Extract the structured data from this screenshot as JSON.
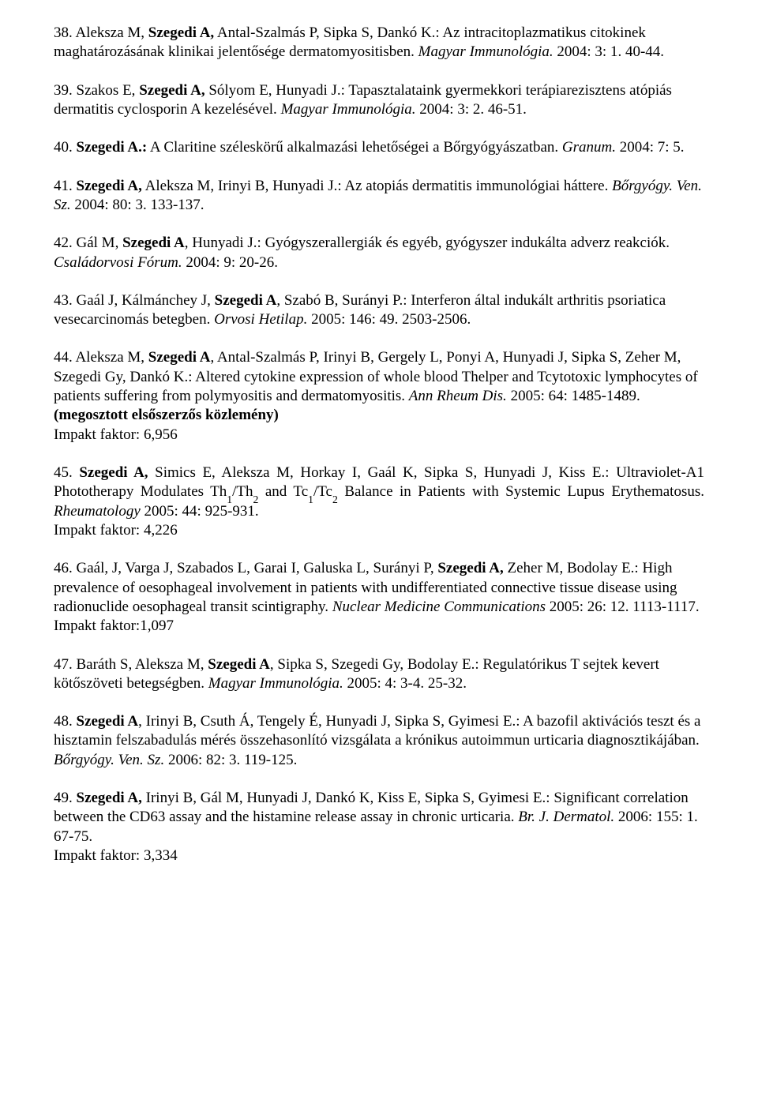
{
  "refs": [
    {
      "html": "38. Aleksza M, <span class='b'>Szegedi A,</span> Antal-Szalmás P, Sipka S, Dankó K.: Az intracitoplazmatikus citokinek maghatározásának klinikai jelentősége dermatomyositisben. <span class='i'>Magyar Immunológia.</span> 2004: 3: 1. 40-44."
    },
    {
      "html": "39. Szakos E, <span class='b'>Szegedi A,</span> Sólyom E, Hunyadi J.: Tapasztalataink gyermekkori terápiarezisztens atópiás dermatitis cyclosporin A kezelésével. <span class='i'>Magyar Immunológia.</span> 2004: 3: 2. 46-51."
    },
    {
      "html": "40. <span class='b'>Szegedi A.:</span> A Claritine széleskörű alkalmazási lehetőségei a Bőrgyógyászatban. <span class='i'>Granum.</span> 2004: 7: 5."
    },
    {
      "html": "41. <span class='b'>Szegedi A,</span> Aleksza M, Irinyi B, Hunyadi J.: Az atopiás dermatitis immunológiai háttere. <span class='i'>Bőrgyógy. Ven. Sz.</span> 2004: 80: 3. 133-137."
    },
    {
      "html": "42. Gál M, <span class='b'>Szegedi A</span>, Hunyadi J.: Gyógyszerallergiák és egyéb, gyógyszer indukálta adverz reakciók. <span class='i'>Családorvosi Fórum.</span> 2004: 9: 20-26."
    },
    {
      "html": "43. Gaál J, Kálmánchey J, <span class='b'>Szegedi A</span>, Szabó B, Surányi P.: Interferon által indukált arthritis psoriatica vesecarcinomás betegben. <span class='i'>Orvosi Hetilap.</span> 2005: 146: 49. 2503-2506."
    },
    {
      "html": "44. Aleksza M, <span class='b'>Szegedi A</span>, Antal-Szalmás P, Irinyi B, Gergely L, Ponyi A, Hunyadi J, Sipka S, Zeher M, Szegedi Gy, Dankó K.: Altered cytokine expression of whole blood Thelper and Tcytotoxic lymphocytes of patients suffering from polymyositis and dermatomyositis. <span class='i'>Ann Rheum Dis.</span> 2005: 64: 1485-1489. <span class='b'>(megosztott elsőszerzős közlemény)</span><br>Impakt faktor: 6,956"
    },
    {
      "html": "45. <span class='b'>Szegedi A,</span> Simics E, Aleksza M, Horkay I, Gaál K, Sipka S, Hunyadi J, Kiss E.: Ultraviolet-A1 Phototherapy Modulates Th<sub>1</sub>/Th<sub>2</sub> and Tc<sub>1</sub>/Tc<sub>2</sub> Balance in Patients with Systemic Lupus Erythematosus. <span class='i'>Rheumatology</span> 2005: 44: 925-931.<br>Impakt faktor: 4,226",
      "justify": true
    },
    {
      "html": "46. Gaál, J, Varga J, Szabados L, Garai I, Galuska L, Surányi P, <span class='b'>Szegedi A,</span> Zeher M, Bodolay E.: High prevalence of oesophageal involvement in patients with undifferentiated connective tissue disease using radionuclide oesophageal transit scintigraphy. <span class='i'>Nuclear Medicine Communications</span> 2005: 26: 12. 1113-1117.<br>Impakt faktor:1,097"
    },
    {
      "html": "47. Baráth S, Aleksza M, <span class='b'>Szegedi A</span>, Sipka S, Szegedi Gy, Bodolay E.: Regulatórikus T sejtek kevert kötőszöveti betegségben. <span class='i'>Magyar Immunológia.</span> 2005: 4: 3-4. 25-32."
    },
    {
      "html": "48. <span class='b'>Szegedi A</span>, Irinyi B, Csuth Á, Tengely É, Hunyadi J, Sipka S, Gyimesi E.: A bazofil aktivációs teszt és a hisztamin felszabadulás mérés összehasonlító vizsgálata a krónikus autoimmun urticaria diagnosztikájában. <span class='i'>Bőrgyógy. Ven. Sz.</span> 2006: 82: 3. 119-125."
    },
    {
      "html": "49. <span class='b'>Szegedi A,</span> Irinyi B, Gál M, Hunyadi J, Dankó K, Kiss E, Sipka S, Gyimesi E.: Significant correlation between the CD63 assay and the histamine release assay in chronic urticaria. <span class='i'>Br. J. Dermatol.</span> 2006: 155: 1. 67-75.<br>Impakt faktor: 3,334"
    }
  ]
}
